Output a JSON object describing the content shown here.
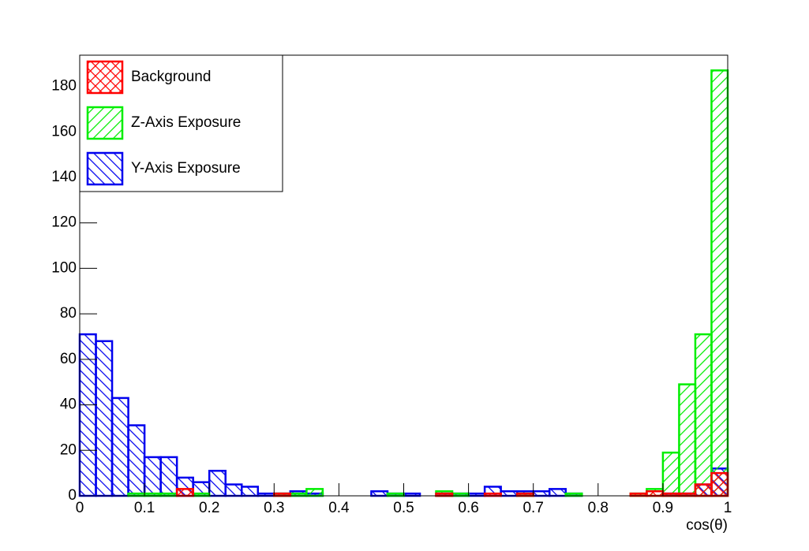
{
  "chart_data": {
    "type": "histogram",
    "bins": [
      0,
      0.025,
      0.05,
      0.075,
      0.1,
      0.125,
      0.15,
      0.175,
      0.2,
      0.225,
      0.25,
      0.275,
      0.3,
      0.325,
      0.35,
      0.375,
      0.4,
      0.425,
      0.45,
      0.475,
      0.5,
      0.525,
      0.55,
      0.575,
      0.6,
      0.625,
      0.65,
      0.675,
      0.7,
      0.725,
      0.75,
      0.775,
      0.8,
      0.825,
      0.85,
      0.875,
      0.9,
      0.925,
      0.95,
      0.975,
      1
    ],
    "series": [
      {
        "name": "Background",
        "color": "#ff0000",
        "hatch": "cross",
        "values": [
          0,
          0,
          0,
          0,
          0,
          0,
          3,
          0,
          0,
          0,
          0,
          0,
          1,
          0,
          0,
          0,
          0,
          0,
          0,
          0,
          0,
          0,
          1,
          0,
          0,
          1,
          0,
          1,
          0,
          0,
          0,
          0,
          0,
          0,
          1,
          2,
          1,
          1,
          5,
          10
        ]
      },
      {
        "name": "Z-Axis Exposure",
        "color": "#00ee00",
        "hatch": "forward",
        "values": [
          0,
          0,
          0,
          1,
          1,
          1,
          0,
          1,
          0,
          0,
          0,
          0,
          1,
          1,
          3,
          0,
          0,
          0,
          0,
          1,
          0,
          0,
          2,
          1,
          0,
          0,
          0,
          1,
          0,
          0,
          1,
          0,
          0,
          0,
          1,
          3,
          19,
          49,
          71,
          187
        ]
      },
      {
        "name": "Y-Axis Exposure",
        "color": "#0000ee",
        "hatch": "back",
        "values": [
          71,
          68,
          43,
          31,
          17,
          17,
          8,
          6,
          11,
          5,
          4,
          1,
          1,
          2,
          1,
          0,
          0,
          0,
          2,
          1,
          1,
          0,
          1,
          1,
          1,
          4,
          2,
          2,
          2,
          3,
          1,
          0,
          0,
          0,
          0,
          0,
          1,
          1,
          5,
          12
        ]
      }
    ],
    "x_label": "cos(θ)",
    "xlim": [
      0,
      1
    ],
    "xticks": [
      0,
      0.1,
      0.2,
      0.3,
      0.4,
      0.5,
      0.6,
      0.7,
      0.8,
      0.9,
      1
    ],
    "ylim": [
      0,
      193.7
    ],
    "yticks": [
      0,
      20,
      40,
      60,
      80,
      100,
      120,
      140,
      160,
      180
    ],
    "legend": "upper left"
  }
}
